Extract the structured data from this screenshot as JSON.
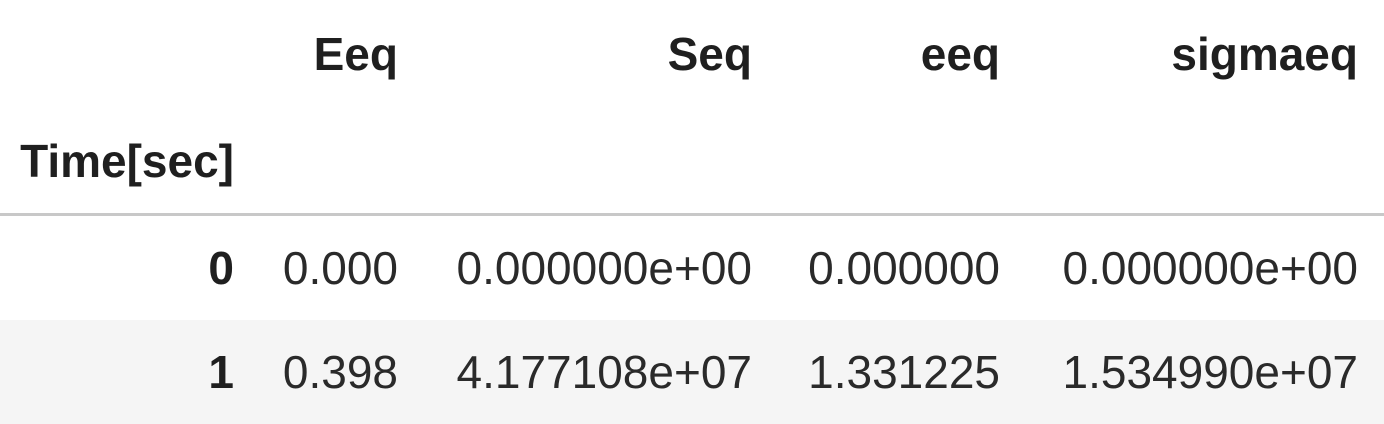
{
  "table": {
    "columns": [
      "Eeq",
      "Seq",
      "eeq",
      "sigmaeq"
    ],
    "index_name": "Time[sec]",
    "rows": [
      {
        "index": "0",
        "values": [
          "0.000",
          "0.000000e+00",
          "0.000000",
          "0.000000e+00"
        ]
      },
      {
        "index": "1",
        "values": [
          "0.398",
          "4.177108e+07",
          "1.331225",
          "1.534990e+07"
        ]
      }
    ]
  }
}
